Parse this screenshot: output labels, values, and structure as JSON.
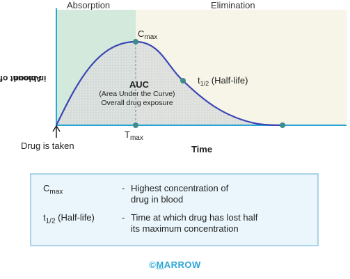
{
  "phases": {
    "absorption": "Absorption",
    "elimination": "Elimination"
  },
  "y_axis_label_line1": "Amount of drug",
  "y_axis_label_line2": "in blood",
  "x_axis_label": "Time",
  "annotations": {
    "cmax_main": "C",
    "cmax_sub": "max",
    "tmax_main": "T",
    "tmax_sub": "max",
    "half_life": "t",
    "half_life_sub": "1/2",
    "half_life_rest": " (Half-life)",
    "auc_title": "AUC",
    "auc_line1": "(Area Under the Curve)",
    "auc_line2": "Overall drug exposure",
    "drug_taken": "Drug is taken"
  },
  "watermark": "MARROW",
  "legend": [
    {
      "term_main": "C",
      "term_sub": "max",
      "term_rest": "",
      "dash": "-",
      "desc_line1": "Highest concentration of",
      "desc_line2": "drug in blood"
    },
    {
      "term_main": "t",
      "term_sub": "1/2",
      "term_rest": " (Half-life)",
      "dash": "-",
      "desc_line1": "Time at which drug has lost half",
      "desc_line2": "its maximum concentration"
    }
  ],
  "copyright": {
    "symbol": "©",
    "brand_underlined": "M",
    "brand_rest": "ARROW"
  },
  "colors": {
    "absorption_bg": "#e4f1ea",
    "absorption_green": "#cfe6d8",
    "elimination_bg": "#f6f5e8",
    "curve": "#3b45b5",
    "axis": "#2aa6d6",
    "dot": "#3d8c8c",
    "auc_fill": "#d7dad9",
    "legend_border": "#a9d3e6",
    "legend_bg": "#eaf6fb",
    "brand": "#2aa6d6"
  }
}
